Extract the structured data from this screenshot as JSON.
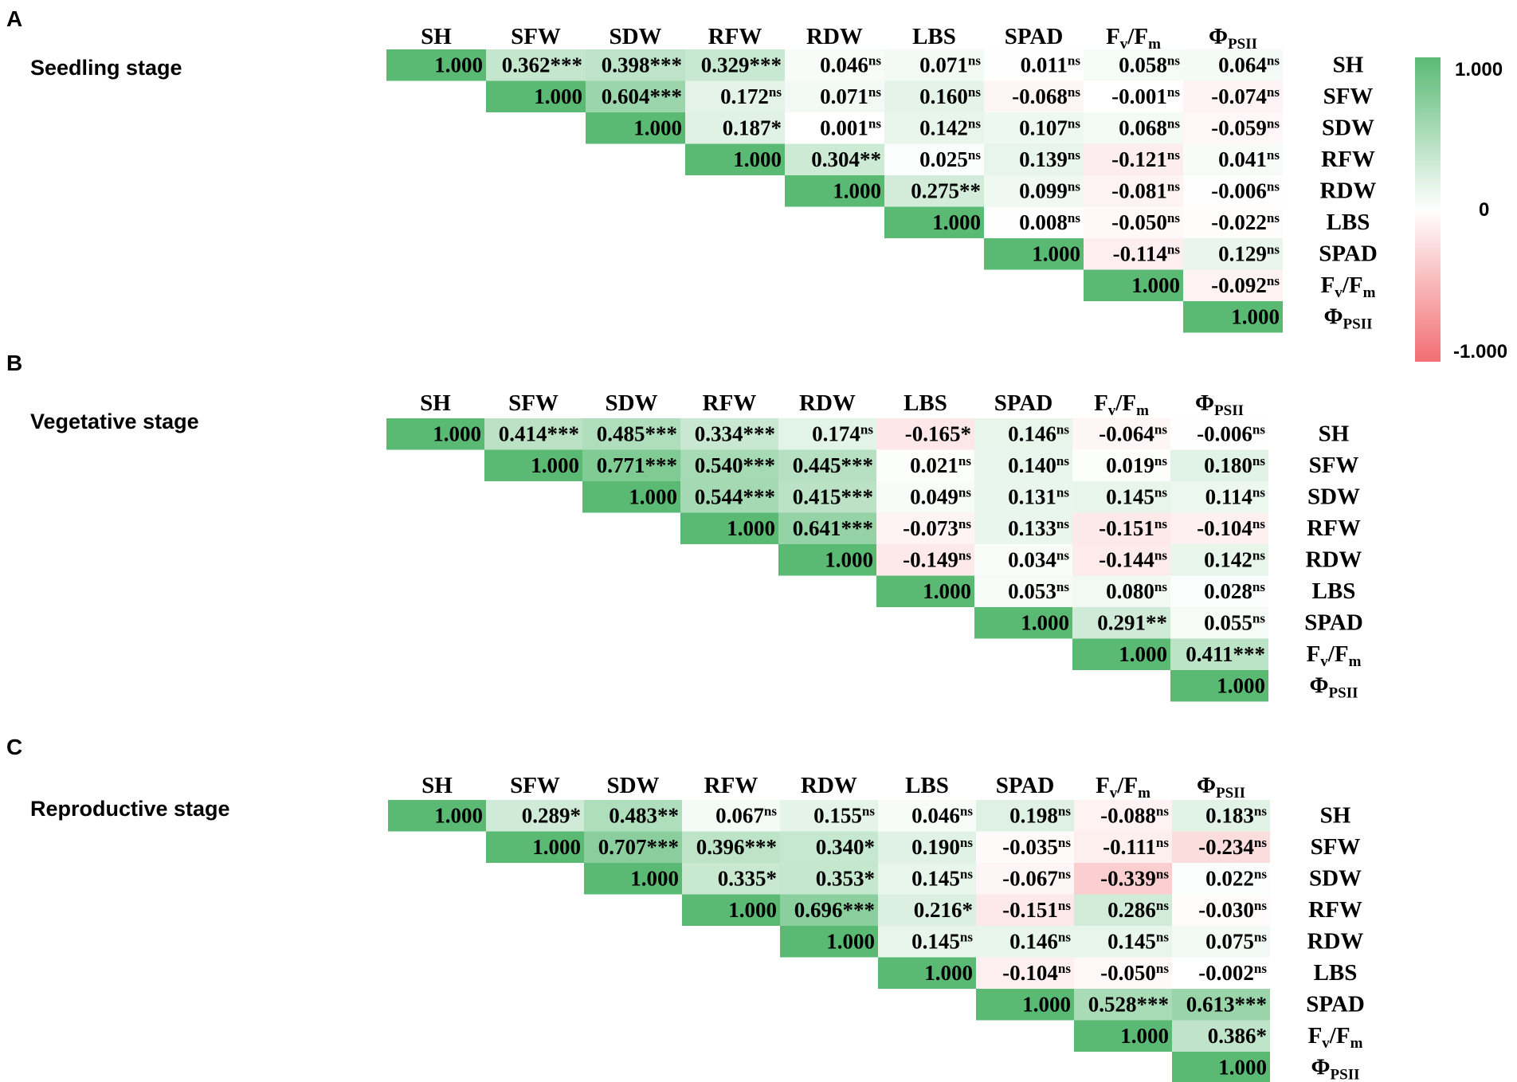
{
  "colors": {
    "positive": "#5aba74",
    "zero": "#ffffff",
    "negative": "#f26e72"
  },
  "colorbar": {
    "max_label": "1.000",
    "mid_label": "0",
    "min_label": "-1.000"
  },
  "variables": [
    {
      "main": "SH",
      "sub": ""
    },
    {
      "main": "SFW",
      "sub": ""
    },
    {
      "main": "SDW",
      "sub": ""
    },
    {
      "main": "RFW",
      "sub": ""
    },
    {
      "main": "RDW",
      "sub": ""
    },
    {
      "main": "LBS",
      "sub": ""
    },
    {
      "main": "SPAD",
      "sub": ""
    },
    {
      "main": "F",
      "sub": "v",
      "main2": "/F",
      "sub2": "m"
    },
    {
      "main": "Φ",
      "sub": "PSII"
    }
  ],
  "chart_data": [
    {
      "type": "heatmap",
      "panel": "A",
      "title": "Seedling stage",
      "value_range": [
        -1,
        1
      ],
      "rows": [
        [
          [
            "1.000",
            ""
          ],
          [
            "0.362",
            "***"
          ],
          [
            "0.398",
            "***"
          ],
          [
            "0.329",
            "***"
          ],
          [
            "0.046",
            "ns"
          ],
          [
            "0.071",
            "ns"
          ],
          [
            "0.011",
            "ns"
          ],
          [
            "0.058",
            "ns"
          ],
          [
            "0.064",
            "ns"
          ]
        ],
        [
          [
            "1.000",
            ""
          ],
          [
            "0.604",
            "***"
          ],
          [
            "0.172",
            "ns"
          ],
          [
            "0.071",
            "ns"
          ],
          [
            "0.160",
            "ns"
          ],
          [
            "-0.068",
            "ns"
          ],
          [
            "-0.001",
            "ns"
          ],
          [
            "-0.074",
            "ns"
          ]
        ],
        [
          [
            "1.000",
            ""
          ],
          [
            "0.187",
            "*"
          ],
          [
            "0.001",
            "ns"
          ],
          [
            "0.142",
            "ns"
          ],
          [
            "0.107",
            "ns"
          ],
          [
            "0.068",
            "ns"
          ],
          [
            "-0.059",
            "ns"
          ]
        ],
        [
          [
            "1.000",
            ""
          ],
          [
            "0.304",
            "**"
          ],
          [
            "0.025",
            "ns"
          ],
          [
            "0.139",
            "ns"
          ],
          [
            "-0.121",
            "ns"
          ],
          [
            "0.041",
            "ns"
          ]
        ],
        [
          [
            "1.000",
            ""
          ],
          [
            "0.275",
            "**"
          ],
          [
            "0.099",
            "ns"
          ],
          [
            "-0.081",
            "ns"
          ],
          [
            "-0.006",
            "ns"
          ]
        ],
        [
          [
            "1.000",
            ""
          ],
          [
            "0.008",
            "ns"
          ],
          [
            "-0.050",
            "ns"
          ],
          [
            "-0.022",
            "ns"
          ]
        ],
        [
          [
            "1.000",
            ""
          ],
          [
            "-0.114",
            "ns"
          ],
          [
            "0.129",
            "ns"
          ]
        ],
        [
          [
            "1.000",
            ""
          ],
          [
            "-0.092",
            "ns"
          ]
        ],
        [
          [
            "1.000",
            ""
          ]
        ]
      ]
    },
    {
      "type": "heatmap",
      "panel": "B",
      "title": "Vegetative stage",
      "value_range": [
        -1,
        1
      ],
      "rows": [
        [
          [
            "1.000",
            ""
          ],
          [
            "0.414",
            "***"
          ],
          [
            "0.485",
            "***"
          ],
          [
            "0.334",
            "***"
          ],
          [
            "0.174",
            "ns"
          ],
          [
            "-0.165",
            "*"
          ],
          [
            "0.146",
            "ns"
          ],
          [
            "-0.064",
            "ns"
          ],
          [
            "-0.006",
            "ns"
          ]
        ],
        [
          [
            "1.000",
            ""
          ],
          [
            "0.771",
            "***"
          ],
          [
            "0.540",
            "***"
          ],
          [
            "0.445",
            "***"
          ],
          [
            "0.021",
            "ns"
          ],
          [
            "0.140",
            "ns"
          ],
          [
            "0.019",
            "ns"
          ],
          [
            "0.180",
            "ns"
          ]
        ],
        [
          [
            "1.000",
            ""
          ],
          [
            "0.544",
            "***"
          ],
          [
            "0.415",
            "***"
          ],
          [
            "0.049",
            "ns"
          ],
          [
            "0.131",
            "ns"
          ],
          [
            "0.145",
            "ns"
          ],
          [
            "0.114",
            "ns"
          ]
        ],
        [
          [
            "1.000",
            ""
          ],
          [
            "0.641",
            "***"
          ],
          [
            "-0.073",
            "ns"
          ],
          [
            "0.133",
            "ns"
          ],
          [
            "-0.151",
            "ns"
          ],
          [
            "-0.104",
            "ns"
          ]
        ],
        [
          [
            "1.000",
            ""
          ],
          [
            "-0.149",
            "ns"
          ],
          [
            "0.034",
            "ns"
          ],
          [
            "-0.144",
            "ns"
          ],
          [
            "0.142",
            "ns"
          ]
        ],
        [
          [
            "1.000",
            ""
          ],
          [
            "0.053",
            "ns"
          ],
          [
            "0.080",
            "ns"
          ],
          [
            "0.028",
            "ns"
          ]
        ],
        [
          [
            "1.000",
            ""
          ],
          [
            "0.291",
            "**"
          ],
          [
            "0.055",
            "ns"
          ]
        ],
        [
          [
            "1.000",
            ""
          ],
          [
            "0.411",
            "***"
          ]
        ],
        [
          [
            "1.000",
            ""
          ]
        ]
      ]
    },
    {
      "type": "heatmap",
      "panel": "C",
      "title": "Reproductive stage",
      "value_range": [
        -1,
        1
      ],
      "rows": [
        [
          [
            "1.000",
            ""
          ],
          [
            "0.289",
            "*"
          ],
          [
            "0.483",
            "**"
          ],
          [
            "0.067",
            "ns"
          ],
          [
            "0.155",
            "ns"
          ],
          [
            "0.046",
            "ns"
          ],
          [
            "0.198",
            "ns"
          ],
          [
            "-0.088",
            "ns"
          ],
          [
            "0.183",
            "ns"
          ]
        ],
        [
          [
            "1.000",
            ""
          ],
          [
            "0.707",
            "***"
          ],
          [
            "0.396",
            "***"
          ],
          [
            "0.340",
            "*"
          ],
          [
            "0.190",
            "ns"
          ],
          [
            "-0.035",
            "ns"
          ],
          [
            "-0.111",
            "ns"
          ],
          [
            "-0.234",
            "ns"
          ]
        ],
        [
          [
            "1.000",
            ""
          ],
          [
            "0.335",
            "*"
          ],
          [
            "0.353",
            "*"
          ],
          [
            "0.145",
            "ns"
          ],
          [
            "-0.067",
            "ns"
          ],
          [
            "-0.339",
            "ns"
          ],
          [
            "0.022",
            "ns"
          ]
        ],
        [
          [
            "1.000",
            ""
          ],
          [
            "0.696",
            "***"
          ],
          [
            "0.216",
            "*"
          ],
          [
            "-0.151",
            "ns"
          ],
          [
            "0.286",
            "ns"
          ],
          [
            "-0.030",
            "ns"
          ]
        ],
        [
          [
            "1.000",
            ""
          ],
          [
            "0.145",
            "ns"
          ],
          [
            "0.146",
            "ns"
          ],
          [
            "0.145",
            "ns"
          ],
          [
            "0.075",
            "ns"
          ]
        ],
        [
          [
            "1.000",
            ""
          ],
          [
            "-0.104",
            "ns"
          ],
          [
            "-0.050",
            "ns"
          ],
          [
            "-0.002",
            "ns"
          ]
        ],
        [
          [
            "1.000",
            ""
          ],
          [
            "0.528",
            "***"
          ],
          [
            "0.613",
            "***"
          ]
        ],
        [
          [
            "1.000",
            ""
          ],
          [
            "0.386",
            "*"
          ]
        ],
        [
          [
            "1.000",
            ""
          ]
        ]
      ]
    }
  ]
}
